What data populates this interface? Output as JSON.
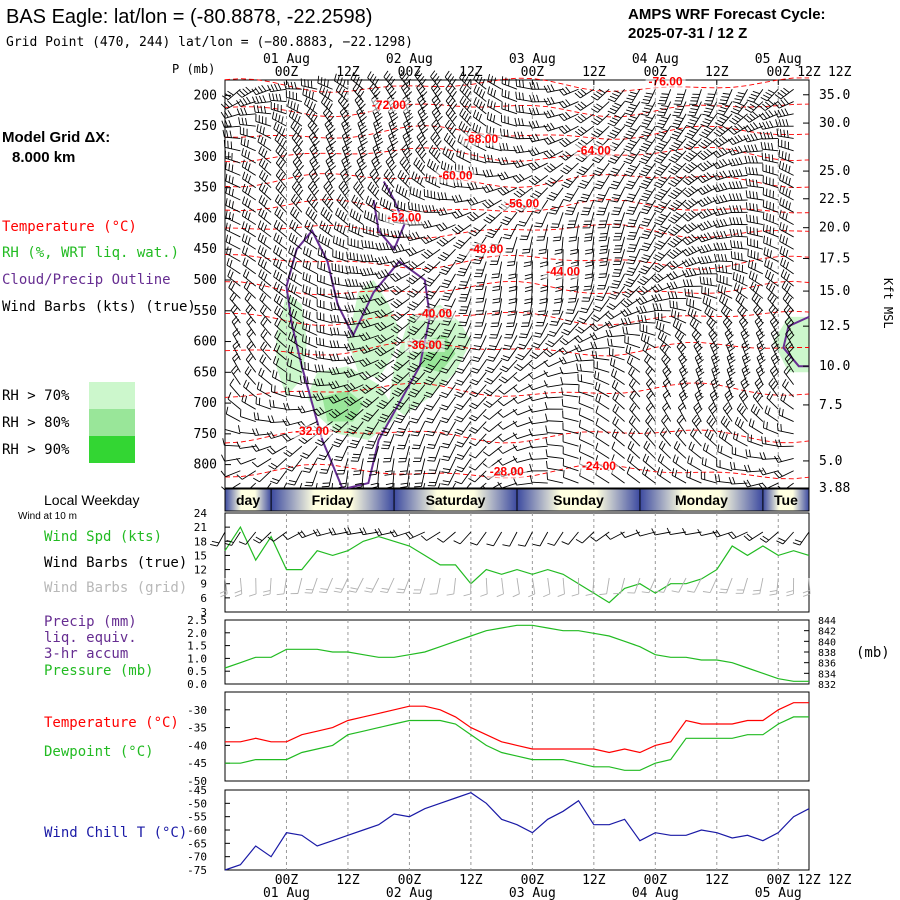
{
  "header": {
    "title": "BAS Eagle:  lat/lon = (-80.8878, -22.2598)",
    "subtitle": "Grid Point (470, 244) lat/lon = (−80.8883, −22.1298)",
    "cycle_title": "AMPS WRF Forecast Cycle:",
    "cycle_value": "2025-07-31 / 12  Z"
  },
  "legend": {
    "model_grid_label": "Model Grid ΔX:",
    "model_grid_value": "8.000 km",
    "temperature": "Temperature (°C)",
    "rh": "RH (%, WRT liq. wat.)",
    "cloud": "Cloud/Precip Outline",
    "wind": "Wind Barbs (kts) (true)",
    "rh_bins": [
      {
        "label": "RH > 70%",
        "color": "#ccf7cc"
      },
      {
        "label": "RH > 80%",
        "color": "#99e699"
      },
      {
        "label": "RH > 90%",
        "color": "#33d633"
      }
    ]
  },
  "colors": {
    "temperature": "#ff0000",
    "cloud": "#662d91",
    "windspeed": "#22bb22",
    "dewpoint": "#22bb22",
    "windchill": "#1a1aa6",
    "grid_barbs": "#b0b0b0"
  },
  "time_axis": {
    "hours": [
      -12,
      0,
      12,
      24,
      36,
      48,
      60,
      72,
      84,
      96,
      108,
      120
    ],
    "tick_labels": [
      "",
      "00Z",
      "12Z",
      "00Z",
      "12Z",
      "00Z",
      "12Z",
      "00Z",
      "12Z",
      "00Z",
      "12Z"
    ],
    "top_date_labels": [
      {
        "text": "01 Aug",
        "hour": 0
      },
      {
        "text": "02 Aug",
        "hour": 24
      },
      {
        "text": "03 Aug",
        "hour": 48
      },
      {
        "text": "04 Aug",
        "hour": 72
      },
      {
        "text": "05 Aug",
        "hour": 96
      }
    ]
  },
  "weekday_band": {
    "label": "Local Weekday",
    "days": [
      {
        "name": "day",
        "start": -12,
        "end": -3
      },
      {
        "name": "Friday",
        "start": -3,
        "end": 21
      },
      {
        "name": "Saturday",
        "start": 21,
        "end": 45
      },
      {
        "name": "Sunday",
        "start": 45,
        "end": 69
      },
      {
        "name": "Monday",
        "start": 69,
        "end": 93
      },
      {
        "name": "Tue",
        "start": 93,
        "end": 102
      }
    ]
  },
  "upper_air": {
    "p_axis_label": "P (mb)",
    "right_axis_label": "Kft MSL",
    "pressure_ticks": [
      200,
      250,
      300,
      350,
      400,
      450,
      500,
      550,
      600,
      650,
      700,
      750,
      800
    ],
    "height_ticks": [
      {
        "kft": "35.0",
        "p": 199
      },
      {
        "kft": "30.0",
        "p": 245
      },
      {
        "kft": "25.0",
        "p": 323
      },
      {
        "kft": "22.5",
        "p": 368
      },
      {
        "kft": "20.0",
        "p": 415
      },
      {
        "kft": "17.5",
        "p": 465
      },
      {
        "kft": "15.0",
        "p": 518
      },
      {
        "kft": "12.5",
        "p": 575
      },
      {
        "kft": "10.0",
        "p": 640
      },
      {
        "kft": "7.5",
        "p": 703
      },
      {
        "kft": "5.0",
        "p": 794
      },
      {
        "kft": "3.88",
        "p": 838
      }
    ],
    "temperature_labels": [
      {
        "text": "-76.00",
        "hour": 74,
        "p": 184
      },
      {
        "text": "-72.00",
        "hour": 20,
        "p": 222
      },
      {
        "text": "-68.00",
        "hour": 38,
        "p": 277
      },
      {
        "text": "-64.00",
        "hour": 60,
        "p": 296
      },
      {
        "text": "-60.00",
        "hour": 33,
        "p": 337
      },
      {
        "text": "-56.00",
        "hour": 46,
        "p": 382
      },
      {
        "text": "-52.00",
        "hour": 23,
        "p": 405
      },
      {
        "text": "-48.00",
        "hour": 39,
        "p": 456
      },
      {
        "text": "-44.00",
        "hour": 54,
        "p": 493
      },
      {
        "text": "-40.00",
        "hour": 29,
        "p": 561
      },
      {
        "text": "-36.00",
        "hour": 27,
        "p": 612
      },
      {
        "text": "-32.00",
        "hour": 5,
        "p": 752
      },
      {
        "text": "-28.00",
        "hour": 43,
        "p": 818
      },
      {
        "text": "-24.00",
        "hour": 61,
        "p": 809
      }
    ]
  },
  "surface": {
    "wind_at_label": "Wind at 10 m",
    "windspeed_label": "Wind Spd (kts)",
    "barbs_true_label": "Wind Barbs (true)",
    "barbs_grid_label": "Wind Barbs (grid)",
    "precip_label_1": "Precip (mm)",
    "precip_label_2": "liq. equiv.",
    "precip_label_3": "3-hr accum",
    "pressure_label": "Pressure (mb)",
    "pressure_unit": "(mb)",
    "temperature_label": "Temperature (°C)",
    "dewpoint_label": "Dewpoint (°C)",
    "windchill_label": "Wind Chill T (°C)"
  },
  "chart_data": [
    {
      "type": "line",
      "panel": "windspeed",
      "ylim": [
        3,
        24
      ],
      "yticks": [
        3,
        6,
        9,
        12,
        15,
        18,
        21,
        24
      ],
      "series": [
        {
          "name": "Wind Spd (kts)",
          "x": [
            -12,
            -9,
            -6,
            -3,
            0,
            3,
            6,
            9,
            12,
            15,
            18,
            21,
            24,
            27,
            30,
            33,
            36,
            39,
            42,
            45,
            48,
            51,
            54,
            57,
            60,
            63,
            66,
            69,
            72,
            75,
            78,
            81,
            84,
            87,
            90,
            93,
            96,
            99,
            102
          ],
          "y": [
            16,
            21,
            14,
            19,
            12,
            12,
            16,
            15,
            16,
            18,
            19,
            18,
            17,
            15,
            13,
            13,
            9,
            12,
            11,
            12,
            11,
            12,
            11,
            9,
            7,
            5,
            8,
            9,
            7,
            9,
            9,
            10,
            12,
            17,
            15,
            17,
            15,
            16,
            15
          ]
        }
      ]
    },
    {
      "type": "line",
      "panel": "precip_pressure",
      "ylim_precip": [
        0,
        2.5
      ],
      "yticks_precip": [
        "0.0",
        "0.5",
        "1.0",
        "1.5",
        "2.0",
        "2.5"
      ],
      "ylim_pressure": [
        832,
        844
      ],
      "yticks_pressure": [
        832,
        834,
        836,
        838,
        840,
        842,
        844
      ],
      "series": [
        {
          "name": "Pressure (mb)",
          "x": [
            -12,
            -9,
            -6,
            -3,
            0,
            3,
            6,
            9,
            12,
            15,
            18,
            21,
            24,
            27,
            30,
            33,
            36,
            39,
            42,
            45,
            48,
            51,
            54,
            57,
            60,
            63,
            66,
            69,
            72,
            75,
            78,
            81,
            84,
            87,
            90,
            93,
            96,
            99,
            102
          ],
          "y": [
            835.0,
            836.0,
            837.0,
            837.0,
            838.5,
            838.5,
            838.5,
            838.0,
            838.0,
            837.5,
            837.0,
            837.0,
            837.5,
            838.0,
            839.0,
            840.0,
            841.0,
            842.0,
            842.5,
            843.0,
            843.0,
            842.5,
            842.0,
            842.0,
            841.5,
            841.0,
            840.0,
            839.0,
            837.5,
            837.0,
            837.0,
            836.5,
            836.5,
            836.0,
            835.0,
            834.0,
            833.0,
            832.5,
            832.5
          ]
        }
      ]
    },
    {
      "type": "line",
      "panel": "temperature_dewpoint",
      "ylim": [
        -50,
        -25
      ],
      "yticks": [
        -50,
        -45,
        -40,
        -35,
        -30
      ],
      "series": [
        {
          "name": "Temperature (°C)",
          "x": [
            -12,
            -9,
            -6,
            -3,
            0,
            3,
            6,
            9,
            12,
            15,
            18,
            21,
            24,
            27,
            30,
            33,
            36,
            39,
            42,
            45,
            48,
            51,
            54,
            57,
            60,
            63,
            66,
            69,
            72,
            75,
            78,
            81,
            84,
            87,
            90,
            93,
            96,
            99,
            102
          ],
          "y": [
            -39,
            -39,
            -38,
            -39,
            -39,
            -37,
            -36,
            -35,
            -33,
            -32,
            -31,
            -30,
            -29,
            -29,
            -30,
            -32,
            -35,
            -37,
            -39,
            -40,
            -41,
            -41,
            -41,
            -41,
            -41,
            -42,
            -41,
            -42,
            -40,
            -39,
            -33,
            -34,
            -34,
            -34,
            -33,
            -33,
            -30,
            -28,
            -28
          ]
        },
        {
          "name": "Dewpoint (°C)",
          "x": [
            -12,
            -9,
            -6,
            -3,
            0,
            3,
            6,
            9,
            12,
            15,
            18,
            21,
            24,
            27,
            30,
            33,
            36,
            39,
            42,
            45,
            48,
            51,
            54,
            57,
            60,
            63,
            66,
            69,
            72,
            75,
            78,
            81,
            84,
            87,
            90,
            93,
            96,
            99,
            102
          ],
          "y": [
            -45,
            -45,
            -44,
            -44,
            -44,
            -42,
            -41,
            -40,
            -37,
            -36,
            -35,
            -34,
            -33,
            -33,
            -33,
            -34,
            -37,
            -40,
            -42,
            -43,
            -44,
            -44,
            -44,
            -45,
            -46,
            -46,
            -47,
            -47,
            -45,
            -44,
            -38,
            -38,
            -38,
            -38,
            -37,
            -37,
            -34,
            -32,
            -32
          ]
        }
      ]
    },
    {
      "type": "line",
      "panel": "windchill",
      "ylim": [
        -75,
        -45
      ],
      "yticks": [
        -75,
        -70,
        -65,
        -60,
        -55,
        -50,
        -45
      ],
      "series": [
        {
          "name": "Wind Chill T (°C)",
          "x": [
            -12,
            -9,
            -6,
            -3,
            0,
            3,
            6,
            9,
            12,
            15,
            18,
            21,
            24,
            27,
            30,
            33,
            36,
            39,
            42,
            45,
            48,
            51,
            54,
            57,
            60,
            63,
            66,
            69,
            72,
            75,
            78,
            81,
            84,
            87,
            90,
            93,
            96,
            99,
            102
          ],
          "y": [
            -75,
            -73,
            -66,
            -70,
            -61,
            -62,
            -66,
            -64,
            -62,
            -60,
            -58,
            -54,
            -55,
            -52,
            -50,
            -48,
            -46,
            -50,
            -56,
            -58,
            -61,
            -56,
            -53,
            -49,
            -58,
            -58,
            -56,
            -64,
            -61,
            -62,
            -62,
            -60,
            -61,
            -63,
            -62,
            -64,
            -61,
            -55,
            -52
          ]
        }
      ]
    }
  ]
}
